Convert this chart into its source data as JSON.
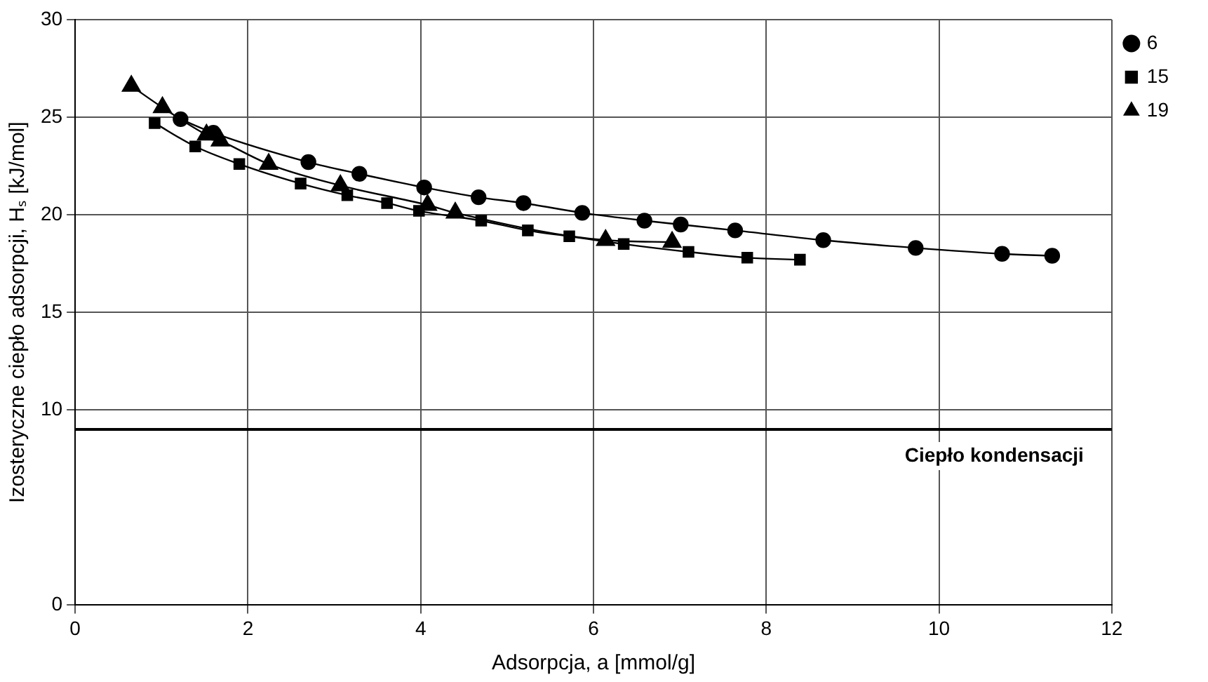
{
  "chart_data": {
    "type": "line",
    "xlabel": "Adsorpcja, a [mmol/g]",
    "ylabel": "Izosteryczne ciepło adsorpcji, Hₛ [kJ/mol]",
    "xlim": [
      0,
      12
    ],
    "xticks": [
      0,
      2,
      4,
      6,
      8,
      10,
      12
    ],
    "ylim": [
      0,
      30
    ],
    "yticks": [
      0,
      10,
      15,
      20,
      25,
      30
    ],
    "grid": true,
    "legend": "top right",
    "line_style": "solid",
    "series": [
      {
        "name": "6",
        "color": "#000000",
        "marker": "circle",
        "x": [
          1.22,
          1.6,
          2.7,
          3.29,
          4.04,
          4.67,
          5.19,
          5.87,
          6.59,
          7.01,
          7.64,
          8.66,
          9.73,
          10.73,
          11.31
        ],
        "values": [
          24.9,
          24.2,
          22.7,
          22.1,
          21.4,
          20.9,
          20.6,
          20.1,
          19.7,
          19.5,
          19.2,
          18.7,
          18.3,
          18.0,
          17.9
        ]
      },
      {
        "name": "15",
        "color": "#000000",
        "marker": "square",
        "x": [
          0.92,
          1.39,
          1.9,
          2.61,
          3.15,
          3.61,
          3.98,
          4.7,
          5.24,
          5.72,
          6.35,
          7.1,
          7.78,
          8.39
        ],
        "values": [
          24.7,
          23.5,
          22.6,
          21.6,
          21.0,
          20.6,
          20.2,
          19.7,
          19.2,
          18.9,
          18.5,
          18.1,
          17.8,
          17.7
        ]
      },
      {
        "name": "19",
        "color": "#000000",
        "marker": "triangle",
        "x": [
          0.65,
          1.01,
          1.52,
          1.68,
          2.24,
          3.07,
          4.08,
          4.4,
          6.14,
          6.91
        ],
        "values": [
          26.6,
          25.5,
          24.1,
          23.8,
          22.6,
          21.5,
          20.5,
          20.1,
          18.7,
          18.6
        ]
      }
    ],
    "ref_lines": [
      {
        "axis": "y",
        "value": 9,
        "label": "Ciepło kondensacji",
        "color": "#000000"
      }
    ]
  }
}
